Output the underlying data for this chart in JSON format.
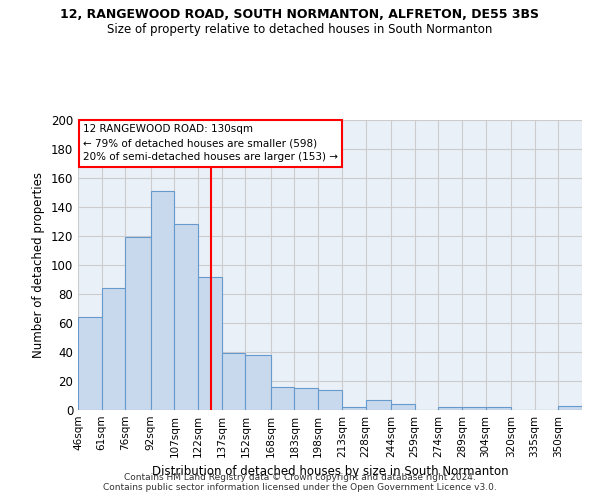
{
  "title1": "12, RANGEWOOD ROAD, SOUTH NORMANTON, ALFRETON, DE55 3BS",
  "title2": "Size of property relative to detached houses in South Normanton",
  "xlabel": "Distribution of detached houses by size in South Normanton",
  "ylabel": "Number of detached properties",
  "footnote1": "Contains HM Land Registry data © Crown copyright and database right 2024.",
  "footnote2": "Contains public sector information licensed under the Open Government Licence v3.0.",
  "bin_labels": [
    "46sqm",
    "61sqm",
    "76sqm",
    "92sqm",
    "107sqm",
    "122sqm",
    "137sqm",
    "152sqm",
    "168sqm",
    "183sqm",
    "198sqm",
    "213sqm",
    "228sqm",
    "244sqm",
    "259sqm",
    "274sqm",
    "289sqm",
    "304sqm",
    "320sqm",
    "335sqm",
    "350sqm"
  ],
  "bar_values": [
    64,
    84,
    119,
    151,
    128,
    92,
    39,
    38,
    16,
    15,
    14,
    2,
    7,
    4,
    0,
    2,
    2,
    2,
    0,
    0,
    3
  ],
  "bar_color": "#c9d9ed",
  "bar_edge_color": "#6699cc",
  "vline_x": 130,
  "vline_color": "red",
  "annotation_line1": "12 RANGEWOOD ROAD: 130sqm",
  "annotation_line2": "← 79% of detached houses are smaller (598)",
  "annotation_line3": "20% of semi-detached houses are larger (153) →",
  "annotation_box_color": "white",
  "annotation_box_edge": "red",
  "ylim": [
    0,
    200
  ],
  "yticks": [
    0,
    20,
    40,
    60,
    80,
    100,
    120,
    140,
    160,
    180,
    200
  ],
  "grid_color": "#cccccc",
  "bg_color": "#eaf0f8"
}
